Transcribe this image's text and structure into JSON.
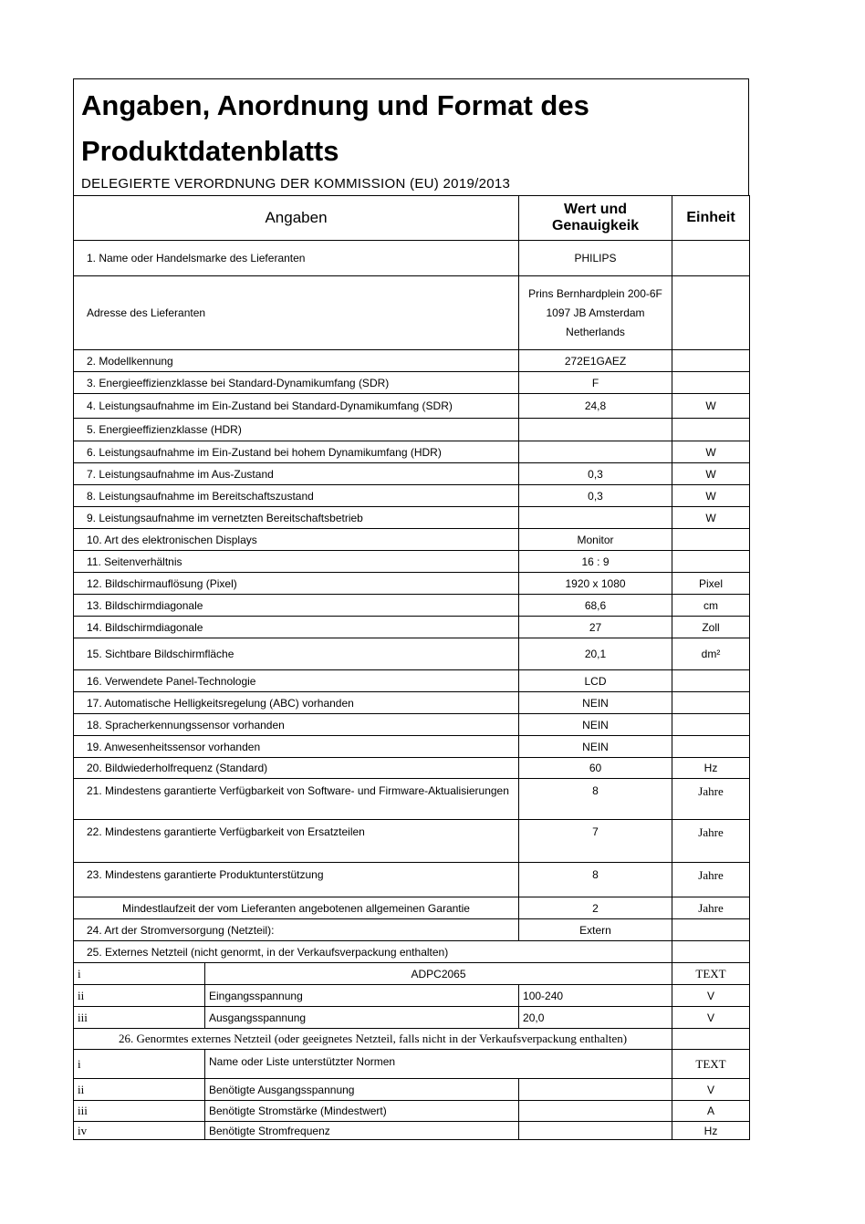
{
  "title_line1": "Angaben, Anordnung und Format des",
  "title_line2": "Produktdatenblatts",
  "subtitle": "DELEGIERTE VERORDNUNG DER KOMMISSION (EU) 2019/2013",
  "headers": {
    "angaben": "Angaben",
    "wert": "Wert und Genauigkeik",
    "einheit": "Einheit"
  },
  "rows": [
    {
      "type": "n",
      "label": "1. Name oder Handelsmarke des Lieferanten",
      "value": "PHILIPS",
      "unit": ""
    },
    {
      "type": "n",
      "label": "Adresse des Lieferanten",
      "value": "Prins Bernhardplein 200-6F\n1097 JB Amsterdam\nNetherlands",
      "unit": ""
    },
    {
      "type": "n",
      "label": "2. Modellkennung",
      "value": "272E1GAEZ",
      "unit": ""
    },
    {
      "type": "n",
      "label": "3. Energieeffizienzklasse bei Standard-Dynamikumfang (SDR)",
      "value": "F",
      "unit": ""
    },
    {
      "type": "n",
      "label": "4. Leistungsaufnahme im Ein-Zustand bei Standard-Dynamikumfang (SDR)",
      "value": "24,8",
      "unit": "W"
    },
    {
      "type": "n",
      "label": "5. Energieeffizienzklasse (HDR)",
      "value": "",
      "unit": ""
    },
    {
      "type": "n",
      "label": "6. Leistungsaufnahme im Ein-Zustand bei hohem Dynamikumfang (HDR)",
      "value": "",
      "unit": "W"
    },
    {
      "type": "n",
      "label": "7. Leistungsaufnahme im Aus-Zustand",
      "value": "0,3",
      "unit": "W"
    },
    {
      "type": "n",
      "label": "8. Leistungsaufnahme im Bereitschaftszustand",
      "value": "0,3",
      "unit": "W"
    },
    {
      "type": "n",
      "label": "9. Leistungsaufnahme im vernetzten Bereitschaftsbetrieb",
      "value": "",
      "unit": "W"
    },
    {
      "type": "n",
      "label": "10. Art des elektronischen Displays",
      "value": "Monitor",
      "unit": ""
    },
    {
      "type": "n",
      "label": "11. Seitenverhältnis",
      "value": "16 : 9",
      "unit": ""
    },
    {
      "type": "n",
      "label": "12. Bildschirmauflösung (Pixel)",
      "value": "1920 x 1080",
      "unit": "Pixel"
    },
    {
      "type": "n",
      "label": "13. Bildschirmdiagonale",
      "value": "68,6",
      "unit": "cm"
    },
    {
      "type": "n",
      "label": "14. Bildschirmdiagonale",
      "value": "27",
      "unit": "Zoll"
    },
    {
      "type": "n",
      "label": "15. Sichtbare Bildschirmfläche",
      "value": "20,1",
      "unit": "dm²"
    },
    {
      "type": "n",
      "label": "16. Verwendete Panel-Technologie",
      "value": "LCD",
      "unit": ""
    },
    {
      "type": "n",
      "label": "17. Automatische Helligkeitsregelung (ABC) vorhanden",
      "value": "NEIN",
      "unit": ""
    },
    {
      "type": "n",
      "label": "18. Spracherkennungssensor vorhanden",
      "value": "NEIN",
      "unit": ""
    },
    {
      "type": "n",
      "label": "19. Anwesenheitssensor vorhanden",
      "value": "NEIN",
      "unit": ""
    },
    {
      "type": "n",
      "label": "20. Bildwiederholfrequenz (Standard)",
      "value": "60",
      "unit": "Hz"
    },
    {
      "type": "n",
      "label": "21.  Mindestens garantierte Verfügbarkeit von Software- und Firmware-Aktualisierungen",
      "value": "8",
      "unit": "Jahre"
    },
    {
      "type": "n",
      "label": "22. Mindestens garantierte Verfügbarkeit von Ersatzteilen",
      "value": "7",
      "unit": "Jahre"
    },
    {
      "type": "n",
      "label": "23. Mindestens garantierte Produktunterstützung",
      "value": "8",
      "unit": "Jahre"
    },
    {
      "type": "n",
      "label": "Mindestlaufzeit der vom Lieferanten angebotenen allgemeinen Garantie",
      "value": "2",
      "unit": "Jahre"
    },
    {
      "type": "n",
      "label": "24. Art der Stromversorgung (Netzteil):",
      "value": "Extern",
      "unit": ""
    },
    {
      "type": "h",
      "label": "25. Externes Netzteil (nicht genormt, in der Verkaufsverpackung enthalten)",
      "unit": ""
    },
    {
      "type": "span",
      "num": "i",
      "label": "ADPC2065",
      "unit": "TEXT"
    },
    {
      "type": "s",
      "num": "ii",
      "label": "Eingangsspannung",
      "value": "100-240",
      "unit": "V"
    },
    {
      "type": "s",
      "num": "iii",
      "label": "Ausgangsspannung",
      "value": "20,0",
      "unit": "V"
    },
    {
      "type": "h",
      "label": "26. Genormtes externes Netzteil (oder geeignetes Netzteil, falls nicht in der Verkaufsverpackung enthalten)",
      "unit": ""
    },
    {
      "type": "span",
      "num": "i",
      "label": "Name oder Liste unterstützter Normen",
      "unit": "TEXT"
    },
    {
      "type": "s",
      "num": "ii",
      "label": "Benötigte Ausgangsspannung",
      "value": "",
      "unit": "V"
    },
    {
      "type": "s",
      "num": "iii",
      "label": "Benötigte Stromstärke (Mindestwert)",
      "value": "",
      "unit": "A"
    },
    {
      "type": "s",
      "num": "iv",
      "label": "Benötigte Stromfrequenz",
      "value": "",
      "unit": "Hz"
    }
  ]
}
